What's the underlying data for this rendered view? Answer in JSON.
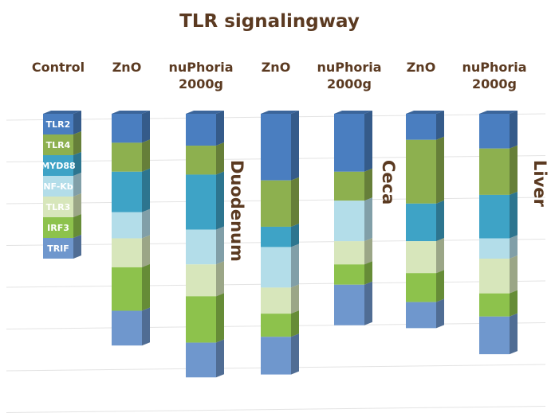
{
  "chart_data": {
    "type": "bar",
    "stacked": true,
    "style": "3d-stacked-columns",
    "title": "TLR signalingway",
    "categories": [
      "Control",
      "ZnO",
      "nuPhoria\n2000g",
      "ZnO",
      "nuPhoria\n2000g",
      "ZnO",
      "nuPhoria\n2000g"
    ],
    "regions": [
      {
        "label": "Duodenum",
        "columns": [
          1,
          2
        ]
      },
      {
        "label": "Ceca",
        "columns": [
          3,
          4
        ]
      },
      {
        "label": "Liver",
        "columns": [
          5,
          6
        ]
      }
    ],
    "legend_placement": "inside-left (Control column)",
    "grid": true,
    "series": [
      {
        "name": "TLR2",
        "color": "#4a7ec0",
        "values": [
          1,
          1.0,
          1.1,
          2.3,
          2.0,
          0.9,
          1.2
        ]
      },
      {
        "name": "TLR4",
        "color": "#8db04f",
        "values": [
          1,
          1.0,
          1.0,
          1.6,
          1.0,
          2.2,
          1.6
        ]
      },
      {
        "name": "MYD88",
        "color": "#3ea3c6",
        "values": [
          1,
          1.4,
          1.9,
          0.7,
          0.0,
          1.3,
          1.5
        ]
      },
      {
        "name": "NF-Kb",
        "color": "#b3dde9",
        "values": [
          1,
          0.9,
          1.2,
          1.4,
          1.4,
          0.0,
          0.7
        ]
      },
      {
        "name": "TLR3",
        "color": "#d7e6bb",
        "values": [
          1,
          1.0,
          1.1,
          0.9,
          0.8,
          1.1,
          1.2
        ]
      },
      {
        "name": "IRF3",
        "color": "#8dc24c",
        "values": [
          1,
          1.5,
          1.6,
          0.8,
          0.7,
          1.0,
          0.8
        ]
      },
      {
        "name": "TRIF",
        "color": "#6f97cd",
        "values": [
          1,
          1.2,
          1.2,
          1.3,
          1.4,
          0.9,
          1.3
        ]
      }
    ]
  }
}
